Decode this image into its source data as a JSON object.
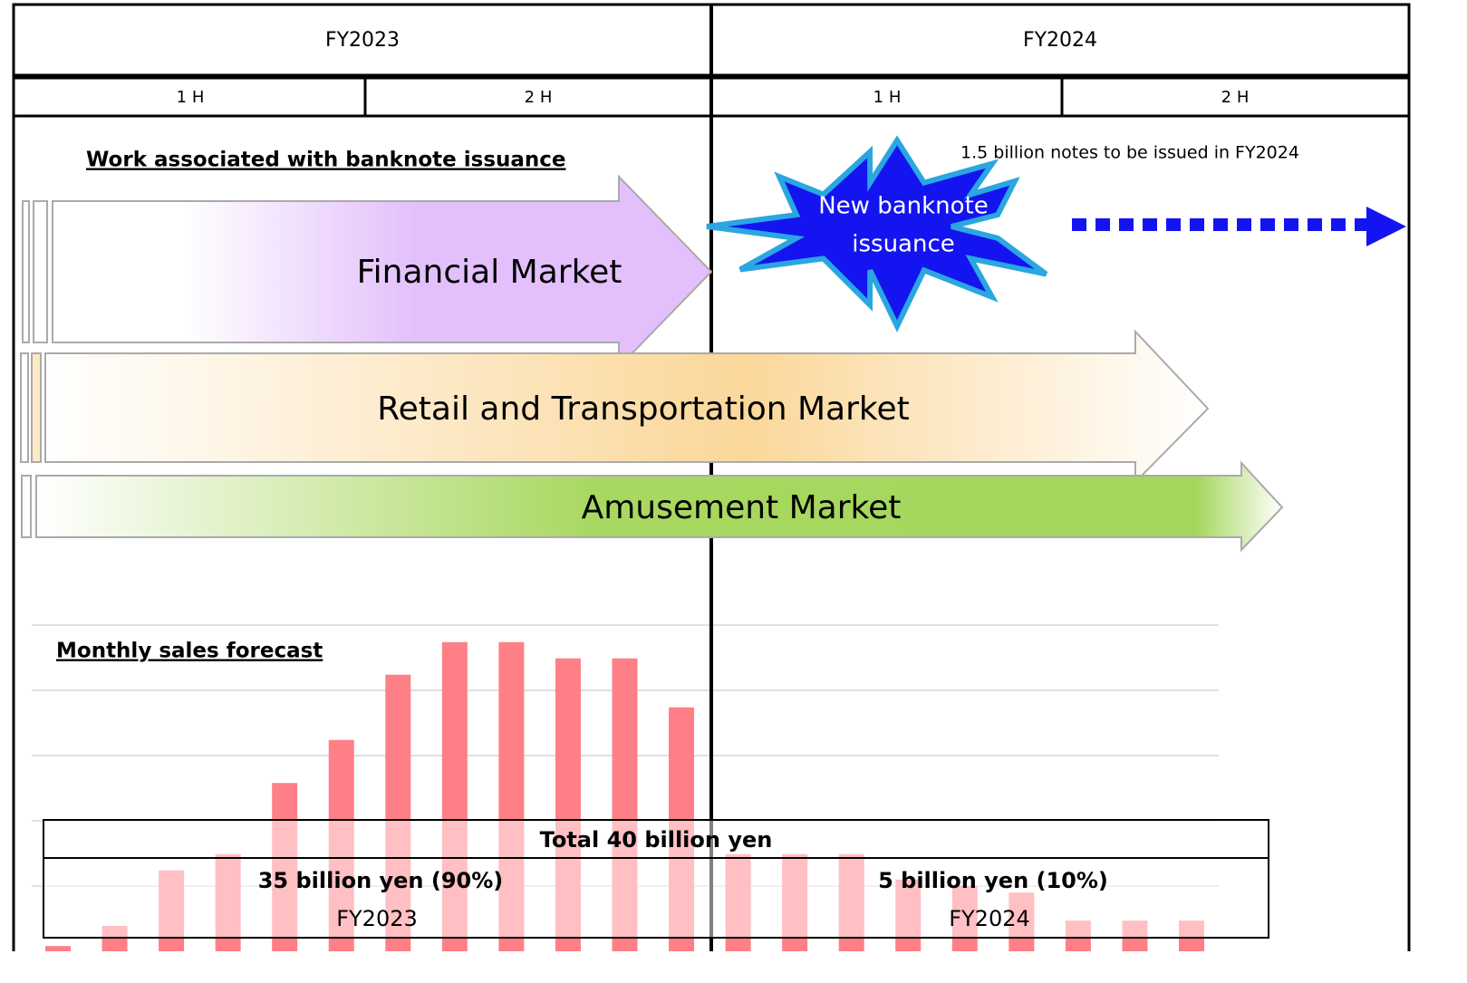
{
  "header": {
    "years": [
      "FY2023",
      "FY2024"
    ],
    "halves": [
      "1 H",
      "2 H",
      "1 H",
      "2 H"
    ]
  },
  "section_title": "Work associated with banknote issuance",
  "markets": [
    "Financial Market",
    "Retail and Transportation Market",
    "Amusement Market"
  ],
  "burst_lines": [
    "New banknote",
    "issuance"
  ],
  "note": "1.5 billion notes to be issued in FY2024",
  "chart_data": {
    "type": "bar",
    "title": "Monthly sales forecast",
    "categories": [
      null,
      null,
      null,
      null,
      null,
      null,
      null,
      null,
      null,
      null,
      null,
      null,
      null,
      null,
      null,
      null,
      null,
      null,
      null,
      null,
      null
    ],
    "values": [
      0.08,
      0.39,
      1.24,
      1.49,
      2.58,
      3.24,
      4.24,
      4.74,
      4.74,
      4.49,
      4.49,
      3.74,
      1.49,
      1.49,
      1.49,
      1.1,
      1.0,
      0.9,
      0.47,
      0.47,
      0.47
    ],
    "color": "#ff7f86",
    "ylim": [
      0,
      5
    ],
    "yticks": [
      1,
      2,
      3,
      4,
      5
    ],
    "grid": true
  },
  "summary": {
    "total": "Total 40 billion yen",
    "fy2023": {
      "amount": "35 billion yen (90%)",
      "label": "FY2023"
    },
    "fy2024": {
      "amount": "5 billion yen (10%)",
      "label": "FY2024"
    }
  }
}
